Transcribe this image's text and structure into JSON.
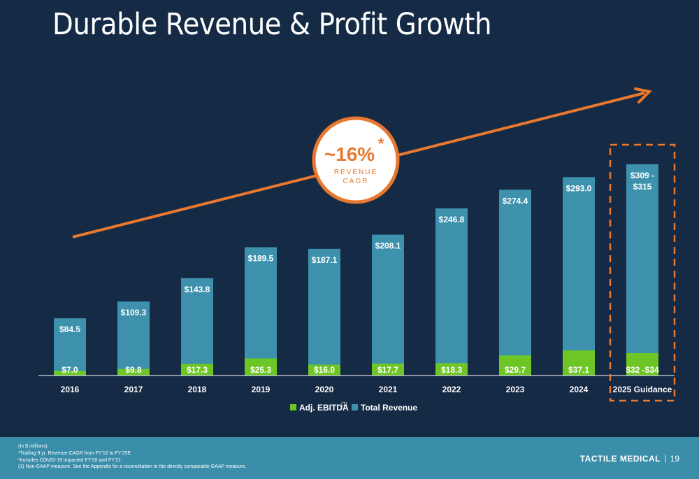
{
  "title": "Durable Revenue & Profit Growth",
  "colors": {
    "background": "#152a45",
    "revenue": "#3d91ad",
    "ebitda": "#6dc626",
    "accent": "#e8782f",
    "footer": "#3b8eaa"
  },
  "cagr": {
    "value": "~16%",
    "asterisk": "*",
    "label_line1": "REVENUE",
    "label_line2": "CAGR"
  },
  "legend": {
    "ebitda_label": "Adj. EBITDA",
    "ebitda_superscript": "(1)",
    "revenue_label": "Total Revenue"
  },
  "footer": {
    "notes": [
      "(In $ millions)",
      "*Trailing 9 yr. Revenue CAGR from FY'16 to FY'25E",
      "*Includes COVID-19 impacted FY'20 and FY'21",
      "(1) Non-GAAP measure. See the Appendix for a reconciliation to the directly comparable GAAP measure."
    ],
    "company": "TACTILE MEDICAL",
    "separator": "|",
    "page_number": "19"
  },
  "chart_data": {
    "type": "bar",
    "categories": [
      "2016",
      "2017",
      "2018",
      "2019",
      "2020",
      "2021",
      "2022",
      "2023",
      "2024",
      "2025 Guidance"
    ],
    "series": [
      {
        "name": "Total Revenue",
        "values": [
          84.5,
          109.3,
          143.8,
          189.5,
          187.1,
          208.1,
          246.8,
          274.4,
          293.0,
          312
        ],
        "labels": [
          "$84.5",
          "$109.3",
          "$143.8",
          "$189.5",
          "$187.1",
          "$208.1",
          "$246.8",
          "$274.4",
          "$293.0",
          "$309 - $315"
        ]
      },
      {
        "name": "Adj. EBITDA",
        "values": [
          7.0,
          9.8,
          17.3,
          25.3,
          16.0,
          17.7,
          18.3,
          29.7,
          37.1,
          33
        ],
        "labels": [
          "$7.0",
          "$9.8",
          "$17.3",
          "$25.3",
          "$16.0",
          "$17.7",
          "$18.3",
          "$29.7",
          "$37.1",
          "$32 -$34"
        ]
      }
    ],
    "guidance_category": "2025 Guidance",
    "ylim": [
      0,
      315
    ],
    "grid": false,
    "legend_position": "bottom-center"
  }
}
